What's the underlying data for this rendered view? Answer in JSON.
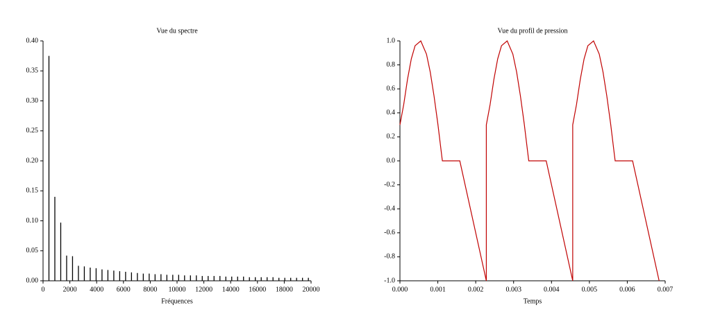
{
  "chart_data": [
    {
      "type": "stem",
      "title": "Vue du spectre",
      "x_label": "Fréquences",
      "color": "#000000",
      "x": [
        440,
        880,
        1320,
        1760,
        2200,
        2640,
        3080,
        3520,
        3960,
        4400,
        4840,
        5280,
        5720,
        6160,
        6600,
        7040,
        7480,
        7920,
        8360,
        8800,
        9240,
        9680,
        10120,
        10560,
        11000,
        11440,
        11880,
        12320,
        12760,
        13200,
        13640,
        14080,
        14520,
        14960,
        15400,
        15840,
        16280,
        16720,
        17160,
        17600,
        18040,
        18480,
        18920,
        19360,
        19800
      ],
      "values": [
        0.375,
        0.14,
        0.097,
        0.042,
        0.041,
        0.025,
        0.024,
        0.022,
        0.021,
        0.019,
        0.018,
        0.017,
        0.016,
        0.015,
        0.014,
        0.013,
        0.012,
        0.012,
        0.011,
        0.011,
        0.01,
        0.01,
        0.01,
        0.009,
        0.009,
        0.009,
        0.008,
        0.008,
        0.008,
        0.008,
        0.007,
        0.007,
        0.007,
        0.007,
        0.006,
        0.006,
        0.006,
        0.006,
        0.006,
        0.005,
        0.005,
        0.005,
        0.005,
        0.005,
        0.005
      ],
      "xlim": [
        0,
        20000
      ],
      "xticks": [
        0,
        2000,
        4000,
        6000,
        8000,
        10000,
        12000,
        14000,
        16000,
        18000,
        20000
      ],
      "ylim": [
        0,
        0.4
      ],
      "yticks": [
        {
          "value": 0,
          "label": "0.00"
        },
        0.05,
        {
          "value": 0.1,
          "label": "0.10"
        },
        0.15,
        {
          "value": 0.2,
          "label": "0.20"
        },
        0.25,
        {
          "value": 0.3,
          "label": "0.30"
        },
        0.35,
        {
          "value": 0.4,
          "label": "0.40"
        }
      ]
    },
    {
      "type": "line",
      "title": "Vue du profil de pression",
      "x_label": "Temps",
      "color": "#c00000",
      "x": [
        0,
        0.0001,
        0.0002,
        0.0003,
        0.0004,
        0.00055,
        0.0007,
        0.0008,
        0.0009,
        0.001,
        0.00105,
        0.0011,
        0.00112,
        0.00158,
        0.00228,
        0.00228,
        0.00238,
        0.00248,
        0.00258,
        0.00268,
        0.00283,
        0.00298,
        0.00308,
        0.00318,
        0.00328,
        0.00333,
        0.00338,
        0.0034,
        0.00386,
        0.00456,
        0.00456,
        0.00466,
        0.00476,
        0.00486,
        0.00496,
        0.00511,
        0.00526,
        0.00536,
        0.00546,
        0.00556,
        0.00561,
        0.00566,
        0.00568,
        0.00614,
        0.00684
      ],
      "values": [
        0.3,
        0.47,
        0.68,
        0.85,
        0.96,
        1.0,
        0.89,
        0.74,
        0.54,
        0.31,
        0.18,
        0.05,
        0,
        0,
        -1,
        0.3,
        0.47,
        0.68,
        0.85,
        0.96,
        1.0,
        0.89,
        0.74,
        0.54,
        0.31,
        0.18,
        0.05,
        0,
        0,
        -1,
        0.3,
        0.47,
        0.68,
        0.85,
        0.96,
        1.0,
        0.89,
        0.74,
        0.54,
        0.31,
        0.18,
        0.05,
        0,
        0,
        -1
      ],
      "xlim": [
        0,
        0.007
      ],
      "xticks": [
        {
          "value": 0,
          "label": "0.000"
        },
        {
          "value": 0.001,
          "label": "0.001"
        },
        {
          "value": 0.002,
          "label": "0.002"
        },
        {
          "value": 0.003,
          "label": "0.003"
        },
        {
          "value": 0.004,
          "label": "0.004"
        },
        {
          "value": 0.005,
          "label": "0.005"
        },
        {
          "value": 0.006,
          "label": "0.006"
        },
        {
          "value": 0.007,
          "label": "0.007"
        }
      ],
      "ylim": [
        -1,
        1
      ],
      "yticks": [
        {
          "value": -1,
          "label": "-1.0"
        },
        -0.8,
        -0.6,
        -0.4,
        -0.2,
        {
          "value": 0,
          "label": "0.0"
        },
        0.2,
        0.4,
        0.6,
        0.8,
        {
          "value": 1,
          "label": "1.0"
        }
      ]
    }
  ]
}
